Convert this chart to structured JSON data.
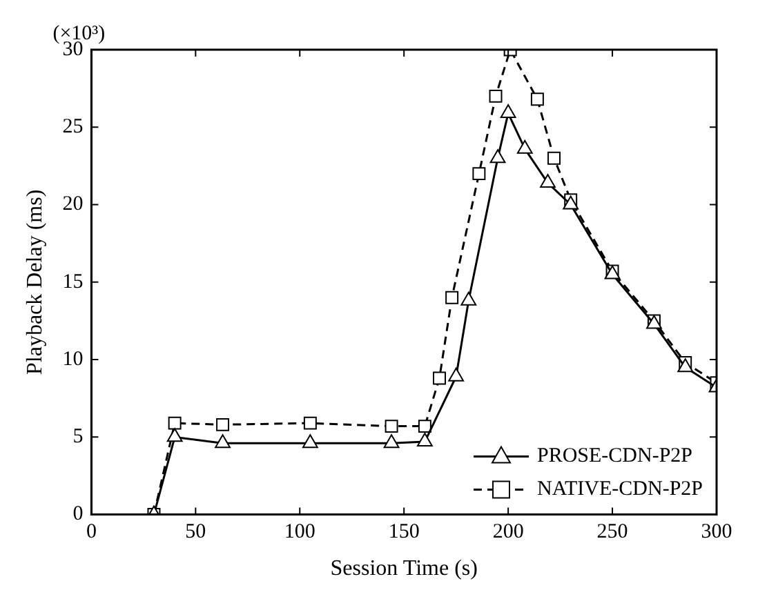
{
  "chart_data": {
    "type": "line",
    "xlabel": "Session Time (s)",
    "ylabel": "Playback Delay (ms)",
    "annotations": [
      "(×10³)"
    ],
    "xlim": [
      0,
      300
    ],
    "xticks": [
      0,
      50,
      100,
      150,
      200,
      250,
      300
    ],
    "ylim": [
      0,
      30
    ],
    "yticks": [
      0,
      5,
      10,
      15,
      20,
      25,
      30
    ],
    "grid": false,
    "legend": "bottom right",
    "series": [
      {
        "name": "PROSE-CDN-P2P",
        "color": "#000000",
        "marker": "triangle",
        "line_style": "solid",
        "x": [
          30,
          40,
          63,
          105,
          144,
          160,
          175,
          181,
          195,
          200,
          208,
          219,
          230,
          250,
          270,
          285,
          300
        ],
        "values": [
          0,
          5.0,
          4.6,
          4.6,
          4.6,
          4.7,
          8.9,
          13.8,
          23.0,
          25.9,
          23.6,
          21.4,
          20.0,
          15.5,
          12.3,
          9.5,
          8.2
        ]
      },
      {
        "name": "NATIVE-CDN-P2P",
        "color": "#000000",
        "marker": "square",
        "line_style": "dashed",
        "x": [
          30,
          40,
          63,
          105,
          144,
          160,
          167,
          173,
          186,
          194,
          201,
          214,
          222,
          230,
          250,
          270,
          285,
          300
        ],
        "values": [
          0,
          5.9,
          5.8,
          5.9,
          5.7,
          5.7,
          8.8,
          14.0,
          22.0,
          27.0,
          30,
          26.8,
          23.0,
          20.3,
          15.7,
          12.5,
          9.8,
          8.5
        ]
      }
    ]
  }
}
